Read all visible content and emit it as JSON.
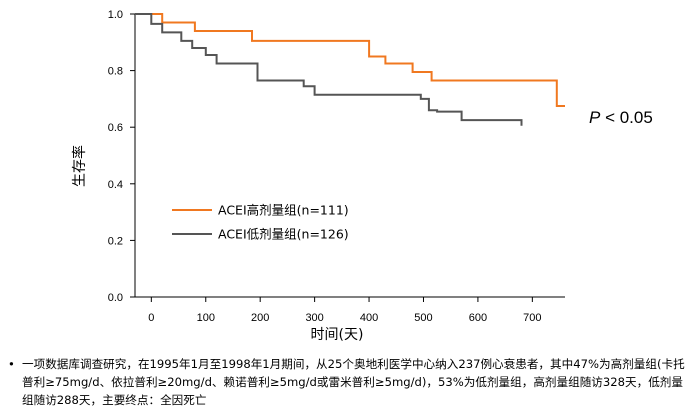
{
  "chart_data": {
    "type": "line",
    "subtype": "kaplan-meier step",
    "xlabel": "时间(天)",
    "ylabel": "生存率",
    "xlim": [
      -30,
      760
    ],
    "ylim": [
      0,
      1.0
    ],
    "xticks": [
      0,
      100,
      200,
      300,
      400,
      500,
      600,
      700
    ],
    "yticks": [
      0.0,
      0.2,
      0.4,
      0.6,
      0.8,
      1.0
    ],
    "ytick_labels": [
      "0.0",
      "0.2",
      "0.4",
      "0.6",
      "0.8",
      "1.0"
    ],
    "grid": false,
    "legend_position": "lower-left",
    "annotation": "P < 0.05",
    "series": [
      {
        "name": "ACEI高剂量组(n=111)",
        "color": "#f07820",
        "points": [
          [
            -30,
            1.0
          ],
          [
            20,
            1.0
          ],
          [
            20,
            0.97
          ],
          [
            80,
            0.97
          ],
          [
            80,
            0.94
          ],
          [
            185,
            0.94
          ],
          [
            185,
            0.905
          ],
          [
            400,
            0.905
          ],
          [
            400,
            0.85
          ],
          [
            430,
            0.85
          ],
          [
            430,
            0.825
          ],
          [
            480,
            0.825
          ],
          [
            480,
            0.795
          ],
          [
            515,
            0.795
          ],
          [
            515,
            0.765
          ],
          [
            745,
            0.765
          ],
          [
            745,
            0.675
          ],
          [
            760,
            0.675
          ]
        ]
      },
      {
        "name": "ACEI低剂量组(n=126)",
        "color": "#555555",
        "points": [
          [
            -30,
            1.0
          ],
          [
            0,
            1.0
          ],
          [
            0,
            0.965
          ],
          [
            20,
            0.965
          ],
          [
            20,
            0.935
          ],
          [
            55,
            0.935
          ],
          [
            55,
            0.905
          ],
          [
            75,
            0.905
          ],
          [
            75,
            0.88
          ],
          [
            100,
            0.88
          ],
          [
            100,
            0.855
          ],
          [
            120,
            0.855
          ],
          [
            120,
            0.825
          ],
          [
            195,
            0.825
          ],
          [
            195,
            0.765
          ],
          [
            280,
            0.765
          ],
          [
            280,
            0.745
          ],
          [
            300,
            0.745
          ],
          [
            300,
            0.715
          ],
          [
            495,
            0.715
          ],
          [
            495,
            0.7
          ],
          [
            510,
            0.7
          ],
          [
            510,
            0.66
          ],
          [
            525,
            0.66
          ],
          [
            525,
            0.655
          ],
          [
            570,
            0.655
          ],
          [
            570,
            0.625
          ],
          [
            680,
            0.625
          ],
          [
            680,
            0.605
          ]
        ]
      }
    ]
  },
  "note": {
    "bullet": "•",
    "text": "一项数据库调查研究，在1995年1月至1998年1月期间，从25个奥地利医学中心纳入237例心衰患者，其中47%为高剂量组(卡托普利≥75mg/d、依拉普利≥20mg/d、赖诺普利≥5mg/d或雷米普利≥5mg/d)，53%为低剂量组，高剂量组随访328天，低剂量组随访288天，主要终点：全因死亡"
  }
}
